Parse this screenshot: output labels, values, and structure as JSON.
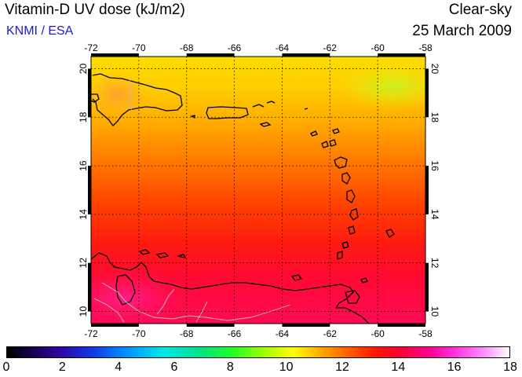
{
  "header": {
    "title": "Vitamin-D UV dose (kJ/m2)",
    "credit": "KNMI / ESA",
    "mode": "Clear-sky",
    "date": "25 March 2009"
  },
  "map": {
    "lon_range": [
      -72,
      -58
    ],
    "lat_range": [
      9.5,
      20.5
    ],
    "lon_ticks": [
      "-72",
      "-70",
      "-68",
      "-66",
      "-64",
      "-62",
      "-60",
      "-58"
    ],
    "lat_ticks": [
      "20",
      "18",
      "16",
      "14",
      "12",
      "10"
    ]
  },
  "colorbar": {
    "labels": [
      "0",
      "2",
      "4",
      "6",
      "8",
      "10",
      "12",
      "14",
      "16",
      "18"
    ],
    "min": 0,
    "max": 18
  }
}
